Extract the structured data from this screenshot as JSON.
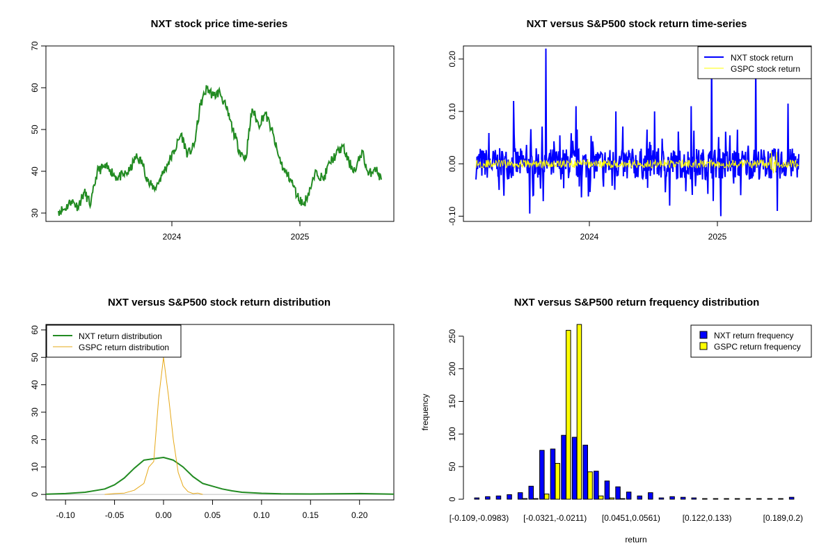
{
  "chart_data": [
    {
      "id": "price",
      "type": "line",
      "title": "NXT stock price time-series",
      "xlabel": "",
      "ylabel": "",
      "x_ticks": [
        "2024",
        "2025"
      ],
      "y_ticks": [
        "30",
        "40",
        "50",
        "60",
        "70"
      ],
      "ylim": [
        28,
        70
      ],
      "grid": false,
      "series": [
        {
          "color": "#228b22",
          "t": [
            0,
            0.02,
            0.04,
            0.06,
            0.08,
            0.1,
            0.12,
            0.14,
            0.16,
            0.18,
            0.2,
            0.22,
            0.24,
            0.26,
            0.28,
            0.3,
            0.32,
            0.34,
            0.36,
            0.38,
            0.4,
            0.42,
            0.44,
            0.46,
            0.48,
            0.5,
            0.52,
            0.54,
            0.56,
            0.58,
            0.6,
            0.62,
            0.64,
            0.66,
            0.68,
            0.7,
            0.72,
            0.74,
            0.76,
            0.78,
            0.8,
            0.82,
            0.84,
            0.86,
            0.88,
            0.9,
            0.92,
            0.94,
            0.96,
            0.98,
            1.0
          ],
          "values": [
            30.5,
            31,
            33,
            31.5,
            35,
            32,
            40,
            41,
            40.5,
            38.5,
            39,
            40,
            43.5,
            42,
            37,
            36,
            39,
            42,
            45,
            49,
            44,
            46,
            56,
            60,
            58,
            59,
            55,
            50,
            45,
            43,
            55,
            51,
            54,
            50,
            44,
            40,
            38,
            34,
            32,
            36,
            40,
            38,
            42,
            44,
            46,
            42,
            40,
            45,
            39,
            41,
            38
          ]
        }
      ]
    },
    {
      "id": "returns",
      "type": "line",
      "title": "NXT versus S&P500 stock return time-series",
      "xlabel": "",
      "ylabel": "",
      "x_ticks": [
        "2024",
        "2025"
      ],
      "y_ticks": [
        "-0.10",
        "0.00",
        "0.10",
        "0.20"
      ],
      "ylim": [
        -0.11,
        0.225
      ],
      "grid": false,
      "legend_position": "top-right",
      "series": [
        {
          "name": "NXT stock return",
          "color": "#0000ff"
        },
        {
          "name": "GSPC stock return",
          "color": "#ffff00"
        }
      ]
    },
    {
      "id": "density",
      "type": "line",
      "title": "NXT versus S&P500 stock return distribution",
      "xlabel": "",
      "ylabel": "",
      "x_ticks": [
        "-0.10",
        "-0.05",
        "0.00",
        "0.05",
        "0.10",
        "0.15",
        "0.20"
      ],
      "y_ticks": [
        "0",
        "10",
        "20",
        "30",
        "40",
        "50",
        "60"
      ],
      "xlim": [
        -0.12,
        0.235
      ],
      "ylim": [
        -2,
        62
      ],
      "grid": false,
      "legend_position": "top-left",
      "series": [
        {
          "name": "NXT return distribution",
          "color": "#228b22",
          "x": [
            -0.12,
            -0.1,
            -0.08,
            -0.06,
            -0.05,
            -0.04,
            -0.03,
            -0.02,
            -0.01,
            0,
            0.01,
            0.02,
            0.03,
            0.04,
            0.05,
            0.06,
            0.07,
            0.08,
            0.1,
            0.12,
            0.15,
            0.2,
            0.235
          ],
          "y": [
            0.1,
            0.3,
            0.8,
            2,
            3.5,
            6,
            9.5,
            12.5,
            13,
            13.5,
            12.5,
            10,
            6.5,
            4,
            3,
            2,
            1.3,
            0.8,
            0.4,
            0.2,
            0.15,
            0.3,
            0.1
          ]
        },
        {
          "name": "GSPC return distribution",
          "color": "#e6a817",
          "x": [
            -0.06,
            -0.05,
            -0.04,
            -0.03,
            -0.02,
            -0.015,
            -0.01,
            -0.005,
            0,
            0.005,
            0.01,
            0.015,
            0.02,
            0.025,
            0.03,
            0.035,
            0.04
          ],
          "y": [
            0,
            0.3,
            0.5,
            1.5,
            4,
            10,
            12,
            35,
            50,
            36,
            20,
            8,
            3,
            1,
            0.3,
            0.5,
            0
          ]
        }
      ]
    },
    {
      "id": "histogram",
      "type": "bar",
      "title": "NXT versus S&P500 return frequency distribution",
      "xlabel": "return",
      "ylabel": "frequency",
      "tick_labels": [
        {
          "index": 0,
          "label": "[-0.109,-0.0983)"
        },
        {
          "index": 7,
          "label": "[-0.0321,-0.0211)"
        },
        {
          "index": 14,
          "label": "[0.0451,0.0561)"
        },
        {
          "index": 21,
          "label": "[0.122,0.133)"
        },
        {
          "index": 28,
          "label": "[0.189,0.2)"
        }
      ],
      "y_ticks": [
        "0",
        "50",
        "100",
        "150",
        "200",
        "250"
      ],
      "ylim": [
        0,
        268
      ],
      "grid": false,
      "legend_position": "top-right",
      "series": [
        {
          "name": "NXT return frequency",
          "color": "#0000ff",
          "values": [
            2,
            4,
            5,
            7,
            10,
            20,
            75,
            77,
            98,
            95,
            83,
            43,
            28,
            19,
            11,
            5,
            10,
            2,
            4,
            3,
            2,
            1,
            1,
            1,
            1,
            1,
            1,
            1,
            1,
            3
          ]
        },
        {
          "name": "GSPC return frequency",
          "color": "#ffff00",
          "values": [
            0,
            0,
            0,
            0,
            1,
            1,
            8,
            55,
            259,
            268,
            42,
            5,
            2,
            1,
            0,
            0,
            0,
            0,
            0,
            0,
            0,
            0,
            0,
            0,
            0,
            0,
            0,
            0,
            0,
            0
          ]
        }
      ]
    }
  ]
}
